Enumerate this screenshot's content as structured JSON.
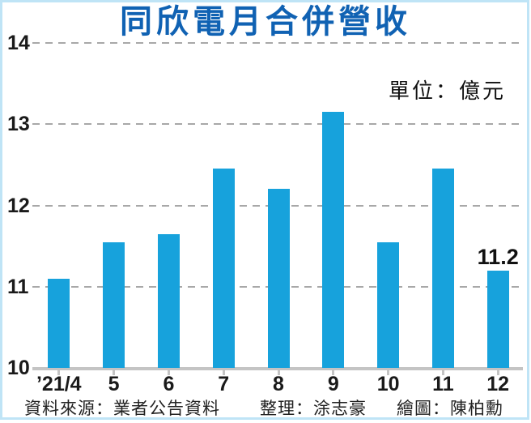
{
  "title": "同欣電月合併營收",
  "unit_label": "單位：億元",
  "footer": {
    "source": "資料來源：業者公告資料",
    "editor": "整理：涂志豪",
    "illustrator": "繪圖：陳柏勳"
  },
  "colors": {
    "bar_fill": "#17a2dc",
    "title_text": "#1062b3",
    "frame_line": "#bfe4f6",
    "gridline": "#a8a8a8",
    "axis_line": "#c4c4c4",
    "text_dark": "#1a1a1a"
  },
  "chart_data": {
    "type": "bar",
    "title": "同欣電月合併營收",
    "unit": "億元",
    "categories": [
      "’21/4",
      "5",
      "6",
      "7",
      "8",
      "9",
      "10",
      "11",
      "12"
    ],
    "values": [
      11.1,
      11.55,
      11.65,
      12.45,
      12.2,
      13.15,
      11.55,
      12.45,
      11.2
    ],
    "data_labels": [
      null,
      null,
      null,
      null,
      null,
      null,
      null,
      null,
      "11.2"
    ],
    "xlabel": "",
    "ylabel": "億元",
    "ylim": [
      10,
      14
    ],
    "yticks": [
      10,
      11,
      12,
      13,
      14
    ],
    "grid": "horizontal-dashed",
    "legend": "none"
  }
}
